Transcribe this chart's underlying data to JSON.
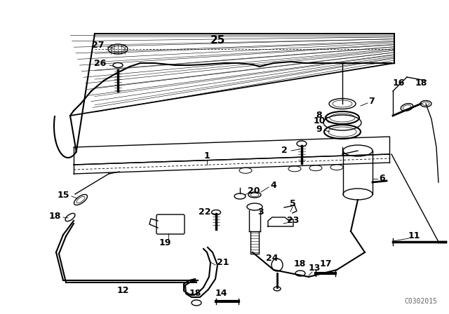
{
  "bg_color": "#ffffff",
  "line_color": "#000000",
  "watermark": "C0302015",
  "figsize": [
    6.4,
    4.48
  ],
  "dpi": 100
}
